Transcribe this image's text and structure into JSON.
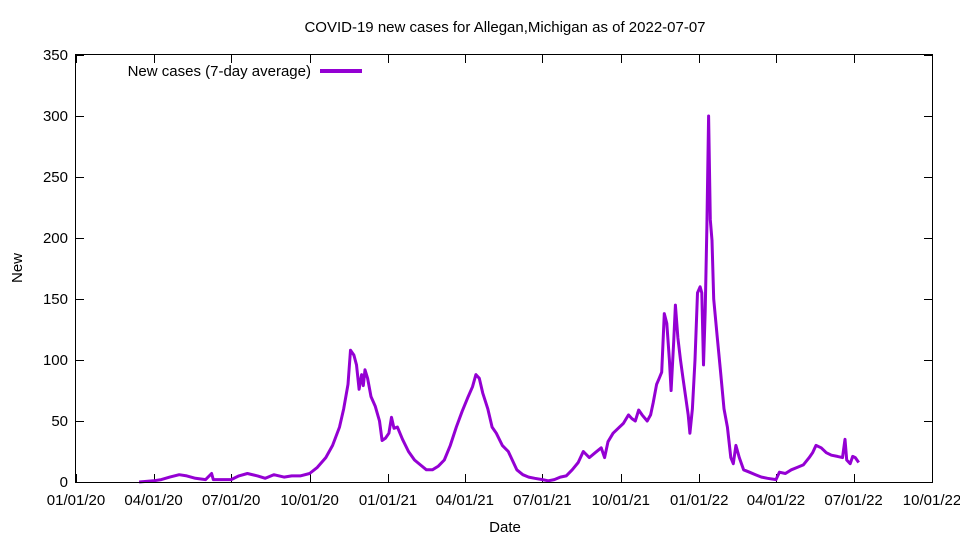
{
  "chart_data": {
    "type": "line",
    "title": "COVID-19 new cases for Allegan,Michigan as of 2022-07-07",
    "xlabel": "Date",
    "ylabel": "New",
    "xlim": [
      "2020-01-01",
      "2022-10-01"
    ],
    "ylim": [
      0,
      350
    ],
    "y_ticks": [
      0,
      50,
      100,
      150,
      200,
      250,
      300,
      350
    ],
    "x_ticks": [
      {
        "date": "2020-01-01",
        "label": "01/01/20"
      },
      {
        "date": "2020-04-01",
        "label": "04/01/20"
      },
      {
        "date": "2020-07-01",
        "label": "07/01/20"
      },
      {
        "date": "2020-10-01",
        "label": "10/01/20"
      },
      {
        "date": "2021-01-01",
        "label": "01/01/21"
      },
      {
        "date": "2021-04-01",
        "label": "04/01/21"
      },
      {
        "date": "2021-07-01",
        "label": "07/01/21"
      },
      {
        "date": "2021-10-01",
        "label": "10/01/21"
      },
      {
        "date": "2022-01-01",
        "label": "01/01/22"
      },
      {
        "date": "2022-04-01",
        "label": "04/01/22"
      },
      {
        "date": "2022-07-01",
        "label": "07/01/22"
      },
      {
        "date": "2022-10-01",
        "label": "10/01/22"
      }
    ],
    "grid": false,
    "legend_position": "top-left",
    "series": [
      {
        "name": "New cases (7-day average)",
        "color": "#9400d3",
        "points": [
          [
            "2020-03-15",
            0
          ],
          [
            "2020-04-01",
            1
          ],
          [
            "2020-04-10",
            2
          ],
          [
            "2020-04-20",
            4
          ],
          [
            "2020-05-01",
            6
          ],
          [
            "2020-05-10",
            5
          ],
          [
            "2020-05-20",
            3
          ],
          [
            "2020-06-01",
            2
          ],
          [
            "2020-06-08",
            7
          ],
          [
            "2020-06-10",
            2
          ],
          [
            "2020-06-20",
            2
          ],
          [
            "2020-07-01",
            2
          ],
          [
            "2020-07-10",
            5
          ],
          [
            "2020-07-20",
            7
          ],
          [
            "2020-08-01",
            5
          ],
          [
            "2020-08-10",
            3
          ],
          [
            "2020-08-20",
            6
          ],
          [
            "2020-09-01",
            4
          ],
          [
            "2020-09-10",
            5
          ],
          [
            "2020-09-20",
            5
          ],
          [
            "2020-10-01",
            7
          ],
          [
            "2020-10-10",
            12
          ],
          [
            "2020-10-20",
            20
          ],
          [
            "2020-10-28",
            30
          ],
          [
            "2020-11-05",
            45
          ],
          [
            "2020-11-10",
            60
          ],
          [
            "2020-11-15",
            80
          ],
          [
            "2020-11-18",
            108
          ],
          [
            "2020-11-22",
            104
          ],
          [
            "2020-11-25",
            96
          ],
          [
            "2020-11-28",
            76
          ],
          [
            "2020-12-01",
            88
          ],
          [
            "2020-12-03",
            79
          ],
          [
            "2020-12-05",
            92
          ],
          [
            "2020-12-08",
            85
          ],
          [
            "2020-12-12",
            70
          ],
          [
            "2020-12-17",
            62
          ],
          [
            "2020-12-22",
            50
          ],
          [
            "2020-12-25",
            34
          ],
          [
            "2020-12-29",
            36
          ],
          [
            "2021-01-02",
            40
          ],
          [
            "2021-01-05",
            53
          ],
          [
            "2021-01-08",
            44
          ],
          [
            "2021-01-12",
            45
          ],
          [
            "2021-01-18",
            35
          ],
          [
            "2021-01-25",
            25
          ],
          [
            "2021-02-01",
            18
          ],
          [
            "2021-02-08",
            14
          ],
          [
            "2021-02-15",
            10
          ],
          [
            "2021-02-22",
            10
          ],
          [
            "2021-03-01",
            13
          ],
          [
            "2021-03-08",
            18
          ],
          [
            "2021-03-15",
            30
          ],
          [
            "2021-03-22",
            45
          ],
          [
            "2021-03-29",
            58
          ],
          [
            "2021-04-05",
            70
          ],
          [
            "2021-04-10",
            78
          ],
          [
            "2021-04-14",
            88
          ],
          [
            "2021-04-18",
            85
          ],
          [
            "2021-04-22",
            73
          ],
          [
            "2021-04-28",
            60
          ],
          [
            "2021-05-03",
            45
          ],
          [
            "2021-05-08",
            40
          ],
          [
            "2021-05-15",
            30
          ],
          [
            "2021-05-22",
            25
          ],
          [
            "2021-06-01",
            10
          ],
          [
            "2021-06-08",
            6
          ],
          [
            "2021-06-15",
            4
          ],
          [
            "2021-06-22",
            3
          ],
          [
            "2021-07-01",
            2
          ],
          [
            "2021-07-08",
            1
          ],
          [
            "2021-07-15",
            2
          ],
          [
            "2021-07-22",
            4
          ],
          [
            "2021-07-29",
            5
          ],
          [
            "2021-08-05",
            10
          ],
          [
            "2021-08-12",
            16
          ],
          [
            "2021-08-18",
            25
          ],
          [
            "2021-08-25",
            20
          ],
          [
            "2021-09-01",
            24
          ],
          [
            "2021-09-08",
            28
          ],
          [
            "2021-09-12",
            20
          ],
          [
            "2021-09-16",
            33
          ],
          [
            "2021-09-22",
            40
          ],
          [
            "2021-09-28",
            44
          ],
          [
            "2021-10-04",
            48
          ],
          [
            "2021-10-10",
            55
          ],
          [
            "2021-10-14",
            52
          ],
          [
            "2021-10-18",
            50
          ],
          [
            "2021-10-22",
            59
          ],
          [
            "2021-10-26",
            55
          ],
          [
            "2021-11-01",
            50
          ],
          [
            "2021-11-05",
            55
          ],
          [
            "2021-11-08",
            65
          ],
          [
            "2021-11-12",
            80
          ],
          [
            "2021-11-15",
            85
          ],
          [
            "2021-11-18",
            90
          ],
          [
            "2021-11-21",
            138
          ],
          [
            "2021-11-24",
            130
          ],
          [
            "2021-11-27",
            100
          ],
          [
            "2021-11-29",
            75
          ],
          [
            "2021-12-02",
            115
          ],
          [
            "2021-12-04",
            145
          ],
          [
            "2021-12-07",
            118
          ],
          [
            "2021-12-10",
            100
          ],
          [
            "2021-12-13",
            85
          ],
          [
            "2021-12-16",
            70
          ],
          [
            "2021-12-19",
            55
          ],
          [
            "2021-12-21",
            40
          ],
          [
            "2021-12-24",
            60
          ],
          [
            "2021-12-27",
            100
          ],
          [
            "2021-12-30",
            155
          ],
          [
            "2022-01-02",
            160
          ],
          [
            "2022-01-04",
            155
          ],
          [
            "2022-01-06",
            96
          ],
          [
            "2022-01-08",
            140
          ],
          [
            "2022-01-10",
            210
          ],
          [
            "2022-01-12",
            300
          ],
          [
            "2022-01-14",
            215
          ],
          [
            "2022-01-16",
            198
          ],
          [
            "2022-01-18",
            150
          ],
          [
            "2022-01-22",
            120
          ],
          [
            "2022-01-26",
            90
          ],
          [
            "2022-01-30",
            60
          ],
          [
            "2022-02-03",
            45
          ],
          [
            "2022-02-07",
            20
          ],
          [
            "2022-02-10",
            15
          ],
          [
            "2022-02-13",
            30
          ],
          [
            "2022-02-17",
            20
          ],
          [
            "2022-02-22",
            10
          ],
          [
            "2022-03-01",
            8
          ],
          [
            "2022-03-08",
            6
          ],
          [
            "2022-03-15",
            4
          ],
          [
            "2022-03-22",
            3
          ],
          [
            "2022-04-01",
            2
          ],
          [
            "2022-04-05",
            8
          ],
          [
            "2022-04-12",
            7
          ],
          [
            "2022-04-19",
            10
          ],
          [
            "2022-04-26",
            12
          ],
          [
            "2022-05-03",
            14
          ],
          [
            "2022-05-10",
            20
          ],
          [
            "2022-05-14",
            24
          ],
          [
            "2022-05-18",
            30
          ],
          [
            "2022-05-24",
            28
          ],
          [
            "2022-05-30",
            24
          ],
          [
            "2022-06-05",
            22
          ],
          [
            "2022-06-12",
            21
          ],
          [
            "2022-06-18",
            20
          ],
          [
            "2022-06-21",
            35
          ],
          [
            "2022-06-23",
            18
          ],
          [
            "2022-06-27",
            15
          ],
          [
            "2022-06-30",
            21
          ],
          [
            "2022-07-03",
            20
          ],
          [
            "2022-07-07",
            16
          ]
        ]
      }
    ]
  }
}
